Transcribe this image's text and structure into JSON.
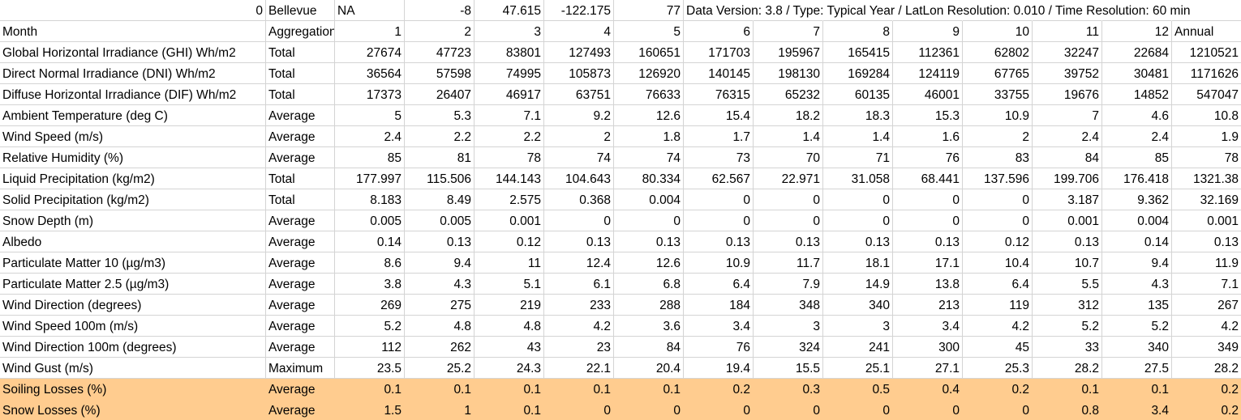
{
  "highlight_color": "#ffcc8f",
  "highlight_rows": [
    18,
    19
  ],
  "rows": [
    [
      0,
      "Bellevue",
      "NA",
      -8,
      47.615,
      -122.175,
      77,
      "Data Version: 3.8 / Type: Typical Year / LatLon Resolution: 0.010 / Time Resolution: 60 min",
      "",
      "",
      "",
      "",
      "",
      "",
      ""
    ],
    [
      "Month",
      "Aggregation",
      1,
      2,
      3,
      4,
      5,
      6,
      7,
      8,
      9,
      10,
      11,
      12,
      "Annual"
    ],
    [
      "Global Horizontal Irradiance (GHI) Wh/m2",
      "Total",
      27674,
      47723,
      83801,
      127493,
      160651,
      171703,
      195967,
      165415,
      112361,
      62802,
      32247,
      22684,
      1210521
    ],
    [
      "Direct Normal Irradiance (DNI) Wh/m2",
      "Total",
      36564,
      57598,
      74995,
      105873,
      126920,
      140145,
      198130,
      169284,
      124119,
      67765,
      39752,
      30481,
      1171626
    ],
    [
      "Diffuse Horizontal Irradiance (DIF) Wh/m2",
      "Total",
      17373,
      26407,
      46917,
      63751,
      76633,
      76315,
      65232,
      60135,
      46001,
      33755,
      19676,
      14852,
      547047
    ],
    [
      "Ambient Temperature (deg C)",
      "Average",
      5,
      5.3,
      7.1,
      9.2,
      12.6,
      15.4,
      18.2,
      18.3,
      15.3,
      10.9,
      7,
      4.6,
      10.8
    ],
    [
      "Wind Speed (m/s)",
      "Average",
      2.4,
      2.2,
      2.2,
      2,
      1.8,
      1.7,
      1.4,
      1.4,
      1.6,
      2,
      2.4,
      2.4,
      1.9
    ],
    [
      "Relative Humidity (%)",
      "Average",
      85,
      81,
      78,
      74,
      74,
      73,
      70,
      71,
      76,
      83,
      84,
      85,
      78
    ],
    [
      "Liquid Precipitation (kg/m2)",
      "Total",
      177.997,
      115.506,
      144.143,
      104.643,
      80.334,
      62.567,
      22.971,
      31.058,
      68.441,
      137.596,
      199.706,
      176.418,
      1321.38
    ],
    [
      "Solid Precipitation (kg/m2)",
      "Total",
      8.183,
      8.49,
      2.575,
      0.368,
      0.004,
      0,
      0,
      0,
      0,
      0,
      3.187,
      9.362,
      32.169
    ],
    [
      "Snow Depth (m)",
      "Average",
      0.005,
      0.005,
      0.001,
      0,
      0,
      0,
      0,
      0,
      0,
      0,
      0.001,
      0.004,
      0.001
    ],
    [
      "Albedo",
      "Average",
      0.14,
      0.13,
      0.12,
      0.13,
      0.13,
      0.13,
      0.13,
      0.13,
      0.13,
      0.12,
      0.13,
      0.14,
      0.13
    ],
    [
      "Particulate Matter 10 (µg/m3)",
      "Average",
      8.6,
      9.4,
      11,
      12.4,
      12.6,
      10.9,
      11.7,
      18.1,
      17.1,
      10.4,
      10.7,
      9.4,
      11.9
    ],
    [
      "Particulate Matter 2.5 (µg/m3)",
      "Average",
      3.8,
      4.3,
      5.1,
      6.1,
      6.8,
      6.4,
      7.9,
      14.9,
      13.8,
      6.4,
      5.5,
      4.3,
      7.1
    ],
    [
      "Wind Direction (degrees)",
      "Average",
      269,
      275,
      219,
      233,
      288,
      184,
      348,
      340,
      213,
      119,
      312,
      135,
      267
    ],
    [
      "Wind Speed 100m (m/s)",
      "Average",
      5.2,
      4.8,
      4.8,
      4.2,
      3.6,
      3.4,
      3,
      3,
      3.4,
      4.2,
      5.2,
      5.2,
      4.2
    ],
    [
      "Wind Direction 100m (degrees)",
      "Average",
      112,
      262,
      43,
      23,
      84,
      76,
      324,
      241,
      300,
      45,
      33,
      340,
      349
    ],
    [
      "Wind Gust (m/s)",
      "Maximum",
      23.5,
      25.2,
      24.3,
      22.1,
      20.4,
      19.4,
      15.5,
      25.1,
      27.1,
      25.3,
      28.2,
      27.5,
      28.2
    ],
    [
      "Soiling Losses (%)",
      "Average",
      0.1,
      0.1,
      0.1,
      0.1,
      0.1,
      0.2,
      0.3,
      0.5,
      0.4,
      0.2,
      0.1,
      0.1,
      0.2
    ],
    [
      "Snow Losses (%)",
      "Average",
      1.5,
      1,
      0.1,
      0,
      0,
      0,
      0,
      0,
      0,
      0,
      0.8,
      3.4,
      0.2
    ]
  ]
}
